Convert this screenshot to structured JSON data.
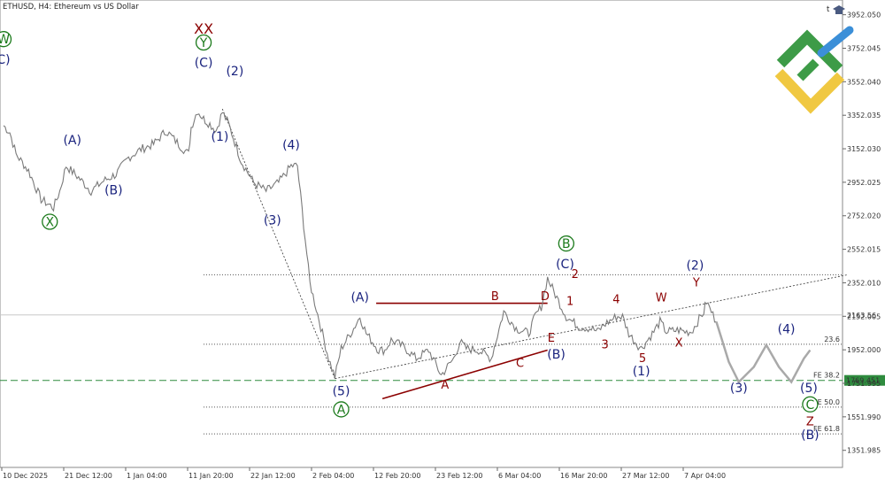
{
  "header": {
    "symbol_label": "ETHUSD, H4:  Ethereum vs US Dollar",
    "corner_mark": "t"
  },
  "colors": {
    "price": "#7a7a7a",
    "navy": "#1a237e",
    "darkred": "#8b0000",
    "green": "#1b7a1b",
    "level_green": "#2e8b3e",
    "forecast": "#a9a9a9",
    "logo_green": "#3d9b47",
    "logo_blue": "#3b8fd8",
    "logo_yellow": "#f0c841"
  },
  "chart_data": {
    "type": "line",
    "symbol": "ETHUSD",
    "timeframe": "H4",
    "ylim": [
      1250,
      4040
    ],
    "y_ticks": [
      "3952.050",
      "3752.045",
      "3552.040",
      "3352.035",
      "3152.030",
      "2952.025",
      "2752.020",
      "2552.015",
      "2352.010",
      "2152.005",
      "1952.000",
      "1751.995",
      "1551.990",
      "1351.985"
    ],
    "x_ticks": [
      "10 Dec 2025",
      "21 Dec 12:00",
      "1 Jan 04:00",
      "11 Jan 20:00",
      "22 Jan 12:00",
      "2 Feb 04:00",
      "12 Feb 20:00",
      "23 Feb 12:00",
      "6 Mar 04:00",
      "16 Mar 20:00",
      "27 Mar 12:00",
      "7 Apr 04:00"
    ],
    "price_path": [
      [
        0,
        3290
      ],
      [
        0.5,
        3250
      ],
      [
        1,
        3120
      ],
      [
        2,
        3020
      ],
      [
        3,
        2850
      ],
      [
        4,
        2800
      ],
      [
        4.5,
        2900
      ],
      [
        5,
        3050
      ],
      [
        6,
        2980
      ],
      [
        7,
        2900
      ],
      [
        8,
        2960
      ],
      [
        9,
        3000
      ],
      [
        10,
        3100
      ],
      [
        11,
        3150
      ],
      [
        12,
        3180
      ],
      [
        13,
        3260
      ],
      [
        14,
        3180
      ],
      [
        14.8,
        3120
      ],
      [
        15,
        3280
      ],
      [
        15.5,
        3380
      ],
      [
        16,
        3330
      ],
      [
        16.5,
        3300
      ],
      [
        17,
        3260
      ],
      [
        17.5,
        3370
      ],
      [
        18,
        3300
      ],
      [
        19,
        3080
      ],
      [
        20,
        2950
      ],
      [
        21,
        2900
      ],
      [
        22,
        2950
      ],
      [
        23,
        3050
      ],
      [
        23.5,
        3050
      ],
      [
        24,
        2700
      ],
      [
        24.5,
        2350
      ],
      [
        25,
        2200
      ],
      [
        25.5,
        2050
      ],
      [
        26,
        1900
      ],
      [
        26.5,
        1790
      ],
      [
        27,
        1960
      ],
      [
        28,
        2080
      ],
      [
        28.5,
        2150
      ],
      [
        29,
        2050
      ],
      [
        30,
        1950
      ],
      [
        30.5,
        1950
      ],
      [
        31,
        2010
      ],
      [
        32,
        1970
      ],
      [
        33,
        1900
      ],
      [
        34,
        1950
      ],
      [
        35,
        1800
      ],
      [
        36,
        1900
      ],
      [
        36.5,
        2000
      ],
      [
        37,
        1960
      ],
      [
        38,
        1950
      ],
      [
        39,
        1900
      ],
      [
        40,
        2180
      ],
      [
        41,
        2080
      ],
      [
        42,
        2050
      ],
      [
        42.5,
        2150
      ],
      [
        43,
        2210
      ],
      [
        43.5,
        2380
      ],
      [
        44,
        2300
      ],
      [
        45,
        2150
      ],
      [
        46,
        2090
      ],
      [
        47,
        2080
      ],
      [
        47.5,
        2060
      ],
      [
        48,
        2100
      ],
      [
        49,
        2150
      ],
      [
        49.5,
        2150
      ],
      [
        50,
        2050
      ],
      [
        50.5,
        2000
      ],
      [
        51,
        1960
      ],
      [
        52,
        2060
      ],
      [
        52.5,
        2120
      ],
      [
        53,
        2060
      ],
      [
        54,
        2070
      ],
      [
        54.5,
        2060
      ],
      [
        55,
        2060
      ],
      [
        56,
        2180
      ],
      [
        56.2,
        2240
      ],
      [
        57,
        2120
      ]
    ],
    "forecast_path": [
      [
        57,
        2120
      ],
      [
        57.5,
        2000
      ],
      [
        58,
        1880
      ],
      [
        58.8,
        1760
      ],
      [
        60,
        1850
      ],
      [
        61,
        1980
      ],
      [
        62,
        1850
      ],
      [
        63,
        1760
      ],
      [
        64,
        1900
      ],
      [
        64.5,
        1950
      ]
    ],
    "levels": [
      {
        "name": "upper-dotted",
        "value": 2400,
        "style": "dotted",
        "label": ""
      },
      {
        "name": "current-price",
        "value": 2160,
        "style": "solid-light",
        "label": "2163.56"
      },
      {
        "name": "fib-23-6",
        "value": 1985,
        "style": "dotted",
        "label": "23.6"
      },
      {
        "name": "fe-38-2",
        "value": 1769.451,
        "style": "dashed-green",
        "label": "FE 38.2"
      },
      {
        "name": "fe-50-0",
        "value": 1610,
        "style": "dotted",
        "label": "FE 50.0"
      },
      {
        "name": "fe-61-8",
        "value": 1450,
        "style": "dotted",
        "label": "FE 61.8"
      }
    ],
    "price_tag": "1769.451",
    "wave_labels": [
      {
        "text": "W",
        "x": 0,
        "y": 3780,
        "style": "circle-green"
      },
      {
        "text": "C)",
        "x": 0,
        "y": 3660,
        "style": "navy"
      },
      {
        "text": "XX",
        "x": 16.0,
        "y": 3840,
        "style": "darkred"
      },
      {
        "text": "Y",
        "x": 16.0,
        "y": 3760,
        "style": "circle-green"
      },
      {
        "text": "(C)",
        "x": 16.0,
        "y": 3640,
        "style": "navy"
      },
      {
        "text": "(2)",
        "x": 18.5,
        "y": 3590,
        "style": "navy"
      },
      {
        "text": "(1)",
        "x": 17.3,
        "y": 3200,
        "style": "navy"
      },
      {
        "text": "(A)",
        "x": 5.5,
        "y": 3180,
        "style": "navy"
      },
      {
        "text": "(B)",
        "x": 8.8,
        "y": 2880,
        "style": "navy"
      },
      {
        "text": "X",
        "x": 3.7,
        "y": 2690,
        "style": "circle-green"
      },
      {
        "text": "(4)",
        "x": 23.0,
        "y": 3150,
        "style": "navy"
      },
      {
        "text": "(3)",
        "x": 21.5,
        "y": 2700,
        "style": "navy"
      },
      {
        "text": "(A)",
        "x": 28.5,
        "y": 2240,
        "style": "navy"
      },
      {
        "text": "(5)",
        "x": 27.0,
        "y": 1680,
        "style": "navy"
      },
      {
        "text": "A",
        "x": 27.0,
        "y": 1570,
        "style": "circle-green"
      },
      {
        "text": "B",
        "x": 39.3,
        "y": 2250,
        "style": "darkred"
      },
      {
        "text": "D",
        "x": 43.3,
        "y": 2250,
        "style": "darkred"
      },
      {
        "text": "A",
        "x": 35.3,
        "y": 1720,
        "style": "darkred"
      },
      {
        "text": "C",
        "x": 41.3,
        "y": 1850,
        "style": "darkred"
      },
      {
        "text": "E",
        "x": 43.8,
        "y": 2000,
        "style": "darkred"
      },
      {
        "text": "(B)",
        "x": 44.2,
        "y": 1900,
        "style": "navy"
      },
      {
        "text": "B",
        "x": 45.0,
        "y": 2560,
        "style": "circle-green"
      },
      {
        "text": "(C)",
        "x": 44.9,
        "y": 2440,
        "style": "navy"
      },
      {
        "text": "2",
        "x": 45.7,
        "y": 2380,
        "style": "darkred"
      },
      {
        "text": "1",
        "x": 45.3,
        "y": 2220,
        "style": "darkred"
      },
      {
        "text": "4",
        "x": 49.0,
        "y": 2230,
        "style": "darkred"
      },
      {
        "text": "3",
        "x": 48.1,
        "y": 1960,
        "style": "darkred"
      },
      {
        "text": "5",
        "x": 51.1,
        "y": 1880,
        "style": "darkred"
      },
      {
        "text": "(1)",
        "x": 51.0,
        "y": 1800,
        "style": "navy"
      },
      {
        "text": "W",
        "x": 52.6,
        "y": 2240,
        "style": "darkred"
      },
      {
        "text": "X",
        "x": 54.0,
        "y": 1970,
        "style": "darkred"
      },
      {
        "text": "(2)",
        "x": 55.3,
        "y": 2430,
        "style": "navy"
      },
      {
        "text": "Y",
        "x": 55.4,
        "y": 2330,
        "style": "darkred"
      },
      {
        "text": "(3)",
        "x": 58.8,
        "y": 1700,
        "style": "navy"
      },
      {
        "text": "(4)",
        "x": 62.6,
        "y": 2050,
        "style": "navy"
      },
      {
        "text": "(5)",
        "x": 64.4,
        "y": 1700,
        "style": "navy"
      },
      {
        "text": "C",
        "x": 64.5,
        "y": 1600,
        "style": "circle-green"
      },
      {
        "text": "Z",
        "x": 64.5,
        "y": 1500,
        "style": "darkred"
      },
      {
        "text": "(B)",
        "x": 64.5,
        "y": 1420,
        "style": "navy"
      }
    ],
    "trend_lines": [
      {
        "name": "wave-5-dotted",
        "from": [
          17.5,
          3390
        ],
        "to": [
          26.5,
          1780
        ],
        "style": "dotted-black"
      },
      {
        "name": "triangle-upper",
        "from": [
          29.8,
          2230
        ],
        "to": [
          43.5,
          2230
        ],
        "style": "solid-darkred"
      },
      {
        "name": "triangle-lower",
        "from": [
          30.3,
          1660
        ],
        "to": [
          43.5,
          1950
        ],
        "style": "solid-darkred"
      },
      {
        "name": "rising-trendline",
        "from": [
          26.5,
          1780
        ],
        "to": [
          67.5,
          2400
        ],
        "style": "dotted-black"
      }
    ]
  }
}
